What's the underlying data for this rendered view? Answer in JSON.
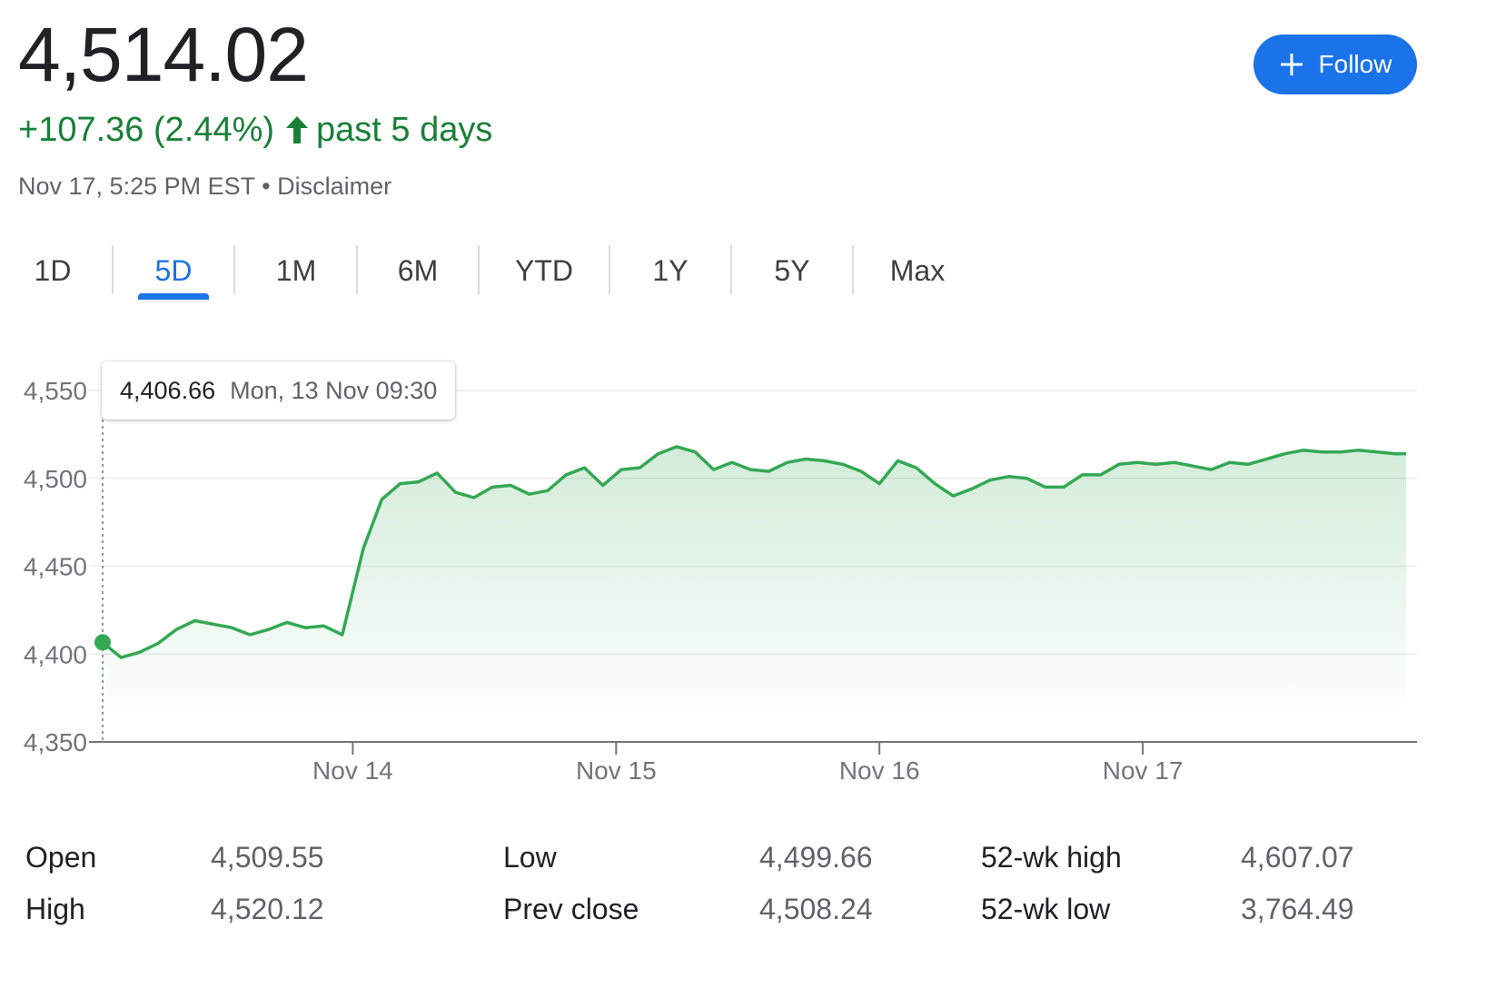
{
  "quote": {
    "price": "4,514.02",
    "change": "+107.36 (2.44%)",
    "period": "past 5 days",
    "timestamp": "Nov 17, 5:25 PM EST",
    "separator": "•",
    "disclaimer": "Disclaimer",
    "positive_color": "#188038"
  },
  "follow_button": {
    "label": "Follow",
    "icon": "plus-icon",
    "color": "#1a73e8"
  },
  "range_tabs": {
    "items": [
      "1D",
      "5D",
      "1M",
      "6M",
      "YTD",
      "1Y",
      "5Y",
      "Max"
    ],
    "selected": "5D",
    "accent": "#1a73e8"
  },
  "tooltip": {
    "value": "4,406.66",
    "date": "Mon, 13 Nov 09:30"
  },
  "chart_data": {
    "type": "area",
    "ylim": [
      4350,
      4550
    ],
    "yticks": [
      "4,550",
      "4,500",
      "4,450",
      "4,400",
      "4,350"
    ],
    "ytick_values": [
      4550,
      4500,
      4450,
      4400,
      4350
    ],
    "xticks": [
      "Nov 14",
      "Nov 15",
      "Nov 16",
      "Nov 17"
    ],
    "xtick_positions": [
      1,
      2,
      3,
      4
    ],
    "xlim": [
      0.05,
      5.0
    ],
    "grid": true,
    "line_color": "#34a853",
    "highlight_index": 0,
    "series": [
      {
        "x": [
          0.05,
          0.12,
          0.19,
          0.26,
          0.33,
          0.4,
          0.47,
          0.54,
          0.61,
          0.68,
          0.75,
          0.82,
          0.89,
          0.96,
          1.04,
          1.11,
          1.18,
          1.25,
          1.32,
          1.39,
          1.46,
          1.53,
          1.6,
          1.67,
          1.74,
          1.81,
          1.88,
          1.95,
          2.02,
          2.09,
          2.16,
          2.23,
          2.3,
          2.37,
          2.44,
          2.51,
          2.58,
          2.65,
          2.72,
          2.79,
          2.86,
          2.93,
          3.0,
          3.07,
          3.14,
          3.21,
          3.28,
          3.35,
          3.42,
          3.49,
          3.56,
          3.63,
          3.7,
          3.77,
          3.84,
          3.91,
          3.98,
          4.05,
          4.12,
          4.19,
          4.26,
          4.33,
          4.4,
          4.47,
          4.54,
          4.61,
          4.68,
          4.75,
          4.82,
          4.89,
          4.96,
          5.0
        ],
        "values": [
          4406.66,
          4398,
          4401,
          4406,
          4414,
          4419,
          4417,
          4415,
          4411,
          4414,
          4418,
          4415,
          4416,
          4411,
          4460,
          4488,
          4497,
          4498,
          4503,
          4492,
          4489,
          4495,
          4496,
          4491,
          4493,
          4502,
          4506,
          4496,
          4505,
          4506,
          4514,
          4518,
          4515,
          4505,
          4509,
          4505,
          4504,
          4509,
          4511,
          4510,
          4508,
          4504,
          4497,
          4510,
          4506,
          4497,
          4490,
          4494,
          4499,
          4501,
          4500,
          4495,
          4495,
          4502,
          4502,
          4508,
          4509,
          4508,
          4509,
          4507,
          4505,
          4509,
          4508,
          4511,
          4514,
          4516,
          4515,
          4515,
          4516,
          4515,
          4514,
          4514.02
        ]
      }
    ]
  },
  "stats": {
    "open": {
      "label": "Open",
      "value": "4,509.55"
    },
    "high": {
      "label": "High",
      "value": "4,520.12"
    },
    "low": {
      "label": "Low",
      "value": "4,499.66"
    },
    "prev_close": {
      "label": "Prev close",
      "value": "4,508.24"
    },
    "wk52_high": {
      "label": "52-wk high",
      "value": "4,607.07"
    },
    "wk52_low": {
      "label": "52-wk low",
      "value": "3,764.49"
    }
  }
}
